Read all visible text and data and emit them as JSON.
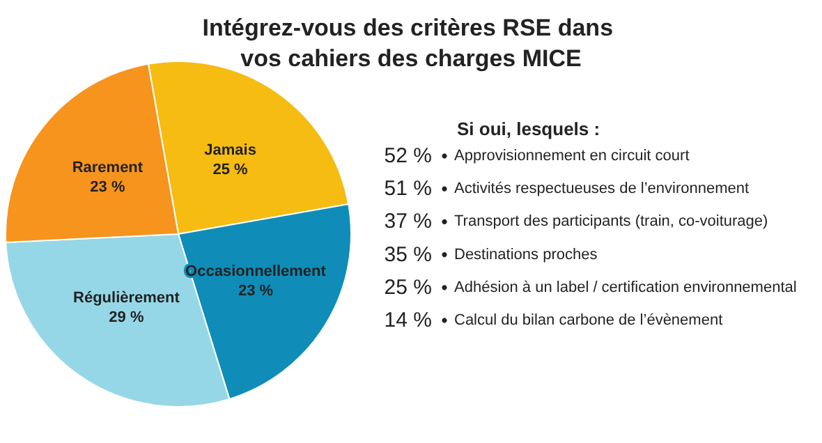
{
  "chart_data": [
    {
      "type": "pie",
      "title": "Intégrez-vous des critères RSE dans vos cahiers des charges MICE",
      "categories": [
        "Jamais",
        "Occasionnellement",
        "Régulièrement",
        "Rarement"
      ],
      "values": [
        25,
        23,
        29,
        23
      ],
      "colors": [
        "#f6bc12",
        "#0f8db8",
        "#95d7e6",
        "#f7941d"
      ],
      "value_labels": [
        "25 %",
        "23 %",
        "29 %",
        "23 %"
      ]
    },
    {
      "type": "other",
      "title": "Si oui, lesquels :",
      "categories": [
        "Approvisionnement en circuit court",
        "Activités respectueuses de l’environnement",
        "Transport des participants (train, co-voiturage)",
        "Destinations proches",
        "Adhésion à un label / certification environnemental",
        "Calcul du bilan carbone de l’évènement"
      ],
      "value_labels": [
        "52 %",
        "51 %",
        "37 %",
        "35 %",
        "25 %",
        "14 %"
      ]
    }
  ]
}
